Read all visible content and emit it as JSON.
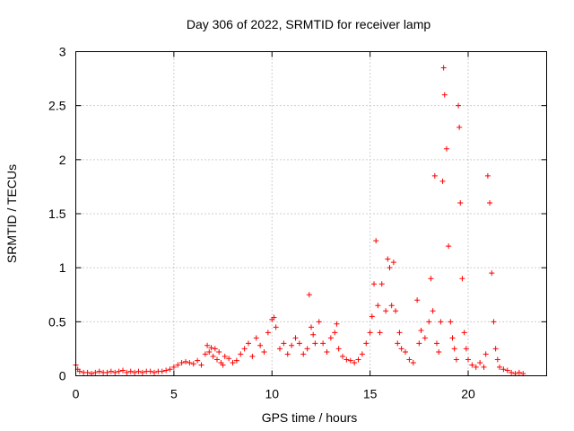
{
  "chart_data": {
    "type": "scatter",
    "title": "Day 306 of 2022, SRMTID for receiver lamp",
    "xlabel": "GPS time / hours",
    "ylabel": "SRMTID / TECUs",
    "xlim": [
      0,
      24
    ],
    "ylim": [
      0,
      3
    ],
    "grid": true,
    "marker": "+",
    "color": "#ff0000",
    "xticks": [
      0,
      5,
      10,
      15,
      20
    ],
    "xtick_labels": [
      "0",
      "5",
      "10",
      "15",
      "20"
    ],
    "yticks": [
      0,
      0.5,
      1,
      1.5,
      2,
      2.5,
      3
    ],
    "ytick_labels": [
      "0",
      "0.5",
      "1",
      "1.5",
      "2",
      "2.5",
      "3"
    ],
    "series": [
      {
        "name": "SRMTID",
        "x": [
          0.0,
          0.1,
          0.2,
          0.4,
          0.6,
          0.8,
          1.0,
          1.2,
          1.4,
          1.6,
          1.8,
          2.0,
          2.2,
          2.4,
          2.6,
          2.8,
          3.0,
          3.2,
          3.4,
          3.6,
          3.8,
          4.0,
          4.2,
          4.4,
          4.6,
          4.8,
          5.0,
          5.2,
          5.4,
          5.6,
          5.8,
          6.0,
          6.2,
          6.4,
          6.6,
          6.7,
          6.8,
          6.9,
          7.0,
          7.1,
          7.2,
          7.3,
          7.4,
          7.5,
          7.6,
          7.8,
          8.0,
          8.2,
          8.4,
          8.6,
          8.8,
          9.0,
          9.2,
          9.4,
          9.6,
          9.8,
          10.0,
          10.1,
          10.2,
          10.4,
          10.6,
          10.8,
          11.0,
          11.2,
          11.4,
          11.6,
          11.8,
          11.9,
          12.0,
          12.1,
          12.2,
          12.4,
          12.6,
          12.8,
          13.0,
          13.2,
          13.3,
          13.4,
          13.6,
          13.8,
          14.0,
          14.2,
          14.4,
          14.6,
          14.8,
          15.0,
          15.1,
          15.2,
          15.3,
          15.4,
          15.5,
          15.6,
          15.8,
          15.9,
          16.0,
          16.1,
          16.2,
          16.3,
          16.4,
          16.5,
          16.6,
          16.8,
          17.0,
          17.2,
          17.4,
          17.5,
          17.6,
          17.8,
          18.0,
          18.1,
          18.2,
          18.3,
          18.4,
          18.5,
          18.6,
          18.7,
          18.75,
          18.8,
          18.9,
          19.0,
          19.1,
          19.2,
          19.3,
          19.4,
          19.5,
          19.55,
          19.6,
          19.7,
          19.8,
          19.9,
          20.0,
          20.2,
          20.4,
          20.6,
          20.8,
          20.9,
          21.0,
          21.1,
          21.2,
          21.3,
          21.4,
          21.5,
          21.6,
          21.8,
          22.0,
          22.2,
          22.4,
          22.6,
          22.8
        ],
        "y": [
          0.1,
          0.06,
          0.04,
          0.03,
          0.03,
          0.02,
          0.03,
          0.04,
          0.03,
          0.03,
          0.04,
          0.03,
          0.04,
          0.05,
          0.03,
          0.04,
          0.03,
          0.04,
          0.03,
          0.04,
          0.04,
          0.03,
          0.04,
          0.04,
          0.05,
          0.06,
          0.08,
          0.1,
          0.12,
          0.13,
          0.12,
          0.11,
          0.14,
          0.1,
          0.2,
          0.28,
          0.22,
          0.26,
          0.18,
          0.25,
          0.15,
          0.22,
          0.12,
          0.1,
          0.18,
          0.16,
          0.12,
          0.14,
          0.2,
          0.25,
          0.3,
          0.18,
          0.35,
          0.28,
          0.22,
          0.4,
          0.52,
          0.54,
          0.45,
          0.25,
          0.3,
          0.2,
          0.28,
          0.35,
          0.3,
          0.2,
          0.25,
          0.75,
          0.45,
          0.38,
          0.3,
          0.5,
          0.3,
          0.22,
          0.35,
          0.4,
          0.48,
          0.25,
          0.18,
          0.15,
          0.14,
          0.12,
          0.15,
          0.2,
          0.3,
          0.4,
          0.55,
          0.85,
          1.25,
          0.65,
          0.4,
          0.85,
          0.6,
          1.08,
          1.0,
          0.65,
          1.05,
          0.6,
          0.3,
          0.4,
          0.25,
          0.22,
          0.15,
          0.12,
          0.7,
          0.3,
          0.42,
          0.35,
          0.5,
          0.9,
          0.6,
          1.85,
          0.3,
          0.22,
          0.5,
          1.8,
          2.85,
          2.6,
          2.1,
          1.2,
          0.5,
          0.35,
          0.25,
          0.15,
          2.5,
          2.3,
          1.6,
          0.9,
          0.4,
          0.25,
          0.15,
          0.1,
          0.08,
          0.12,
          0.08,
          0.2,
          1.85,
          1.6,
          0.95,
          0.5,
          0.25,
          0.15,
          0.08,
          0.06,
          0.05,
          0.03,
          0.02,
          0.03,
          0.02
        ]
      }
    ]
  }
}
